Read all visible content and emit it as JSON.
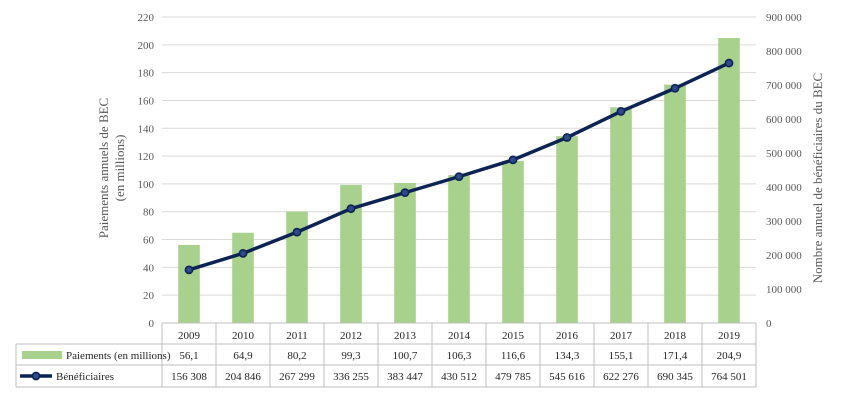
{
  "chart_data": {
    "type": "bar+line",
    "categories": [
      "2009",
      "2010",
      "2011",
      "2012",
      "2013",
      "2014",
      "2015",
      "2016",
      "2017",
      "2018",
      "2019"
    ],
    "series": [
      {
        "name": "Paiements (en millions)",
        "kind": "bar",
        "axis": "left",
        "color": "#a9d18e",
        "values": [
          56.1,
          64.9,
          80.2,
          99.3,
          100.7,
          106.3,
          116.6,
          134.3,
          155.1,
          171.4,
          204.9
        ],
        "labels": [
          "56,1",
          "64,9",
          "80,2",
          "99,3",
          "100,7",
          "106,3",
          "116,6",
          "134,3",
          "155,1",
          "171,4",
          "204,9"
        ]
      },
      {
        "name": "Bénéficiaires",
        "kind": "line",
        "axis": "right",
        "color": "#0d2354",
        "values": [
          156308,
          204846,
          267299,
          336255,
          383447,
          430512,
          479785,
          545616,
          622276,
          690345,
          764501
        ],
        "labels": [
          "156 308",
          "204 846",
          "267 299",
          "336 255",
          "383 447",
          "430 512",
          "479 785",
          "545 616",
          "622 276",
          "690 345",
          "764 501"
        ]
      }
    ],
    "y_left": {
      "label_line1": "Paiements annuels de BEC",
      "label_line2": "(en millions)",
      "lim": [
        0,
        220
      ],
      "ticks": [
        0,
        20,
        40,
        60,
        80,
        100,
        120,
        140,
        160,
        180,
        200,
        220
      ],
      "tick_labels": [
        "0",
        "20",
        "40",
        "60",
        "80",
        "100",
        "120",
        "140",
        "160",
        "180",
        "200",
        "220"
      ]
    },
    "y_right": {
      "label": "Nombre annuel de bénéficiaires du BEC",
      "lim": [
        0,
        900000
      ],
      "ticks": [
        0,
        100000,
        200000,
        300000,
        400000,
        500000,
        600000,
        700000,
        800000,
        900000
      ],
      "tick_labels": [
        "0",
        "100 000",
        "200 000",
        "300 000",
        "400 000",
        "500 000",
        "600 000",
        "700 000",
        "800 000",
        "900 000"
      ]
    },
    "grid": true,
    "legend": "data-table"
  }
}
